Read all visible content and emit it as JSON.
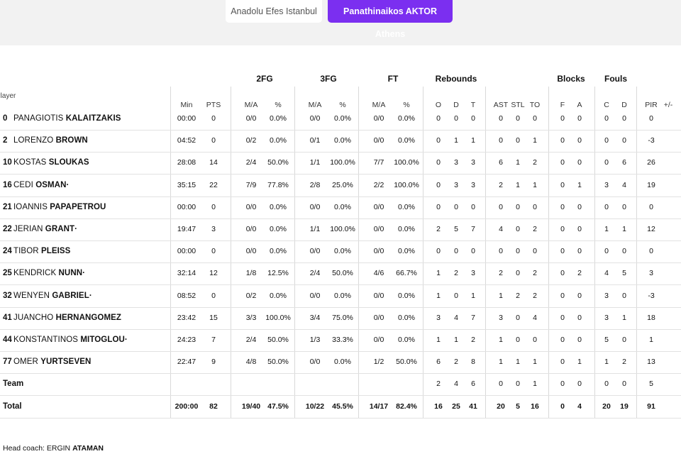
{
  "tabs": {
    "home": "Anadolu Efes Istanbul",
    "away": "Panathinaikos AKTOR Athens"
  },
  "groups": {
    "fg2": "2FG",
    "fg3": "3FG",
    "ft": "FT",
    "reb": "Rebounds",
    "blk": "Blocks",
    "fouls": "Fouls"
  },
  "headers": {
    "player": "Player",
    "min": "Min",
    "pts": "PTS",
    "fg2_ma": "M/A",
    "fg2_pct": "%",
    "fg3_ma": "M/A",
    "fg3_pct": "%",
    "ft_ma": "M/A",
    "ft_pct": "%",
    "o": "O",
    "d": "D",
    "t": "T",
    "ast": "AST",
    "stl": "STL",
    "to": "TO",
    "bf": "F",
    "ba": "A",
    "fc": "C",
    "fd": "D",
    "pir": "PIR",
    "pm": "+/-"
  },
  "players": [
    {
      "num": "0",
      "first": "PANAGIOTIS",
      "last": "KALAITZAKIS",
      "min": "00:00",
      "pts": "0",
      "fg2": "0/0",
      "fg2p": "0.0%",
      "fg3": "0/0",
      "fg3p": "0.0%",
      "ft": "0/0",
      "ftp": "0.0%",
      "o": "0",
      "d": "0",
      "t": "0",
      "ast": "0",
      "stl": "0",
      "to": "0",
      "bf": "0",
      "ba": "0",
      "fc": "0",
      "fd": "0",
      "pir": "0"
    },
    {
      "num": "2",
      "first": "LORENZO",
      "last": "BROWN",
      "min": "04:52",
      "pts": "0",
      "fg2": "0/2",
      "fg2p": "0.0%",
      "fg3": "0/1",
      "fg3p": "0.0%",
      "ft": "0/0",
      "ftp": "0.0%",
      "o": "0",
      "d": "1",
      "t": "1",
      "ast": "0",
      "stl": "0",
      "to": "1",
      "bf": "0",
      "ba": "0",
      "fc": "0",
      "fd": "0",
      "pir": "-3"
    },
    {
      "num": "10",
      "first": "KOSTAS",
      "last": "SLOUKAS",
      "min": "28:08",
      "pts": "14",
      "fg2": "2/4",
      "fg2p": "50.0%",
      "fg3": "1/1",
      "fg3p": "100.0%",
      "ft": "7/7",
      "ftp": "100.0%",
      "o": "0",
      "d": "3",
      "t": "3",
      "ast": "6",
      "stl": "1",
      "to": "2",
      "bf": "0",
      "ba": "0",
      "fc": "0",
      "fd": "6",
      "pir": "26"
    },
    {
      "num": "16",
      "first": "CEDI",
      "last": "OSMAN·",
      "min": "35:15",
      "pts": "22",
      "fg2": "7/9",
      "fg2p": "77.8%",
      "fg3": "2/8",
      "fg3p": "25.0%",
      "ft": "2/2",
      "ftp": "100.0%",
      "o": "0",
      "d": "3",
      "t": "3",
      "ast": "2",
      "stl": "1",
      "to": "1",
      "bf": "0",
      "ba": "1",
      "fc": "3",
      "fd": "4",
      "pir": "19"
    },
    {
      "num": "21",
      "first": "IOANNIS",
      "last": "PAPAPETROU",
      "min": "00:00",
      "pts": "0",
      "fg2": "0/0",
      "fg2p": "0.0%",
      "fg3": "0/0",
      "fg3p": "0.0%",
      "ft": "0/0",
      "ftp": "0.0%",
      "o": "0",
      "d": "0",
      "t": "0",
      "ast": "0",
      "stl": "0",
      "to": "0",
      "bf": "0",
      "ba": "0",
      "fc": "0",
      "fd": "0",
      "pir": "0"
    },
    {
      "num": "22",
      "first": "JERIAN",
      "last": "GRANT·",
      "min": "19:47",
      "pts": "3",
      "fg2": "0/0",
      "fg2p": "0.0%",
      "fg3": "1/1",
      "fg3p": "100.0%",
      "ft": "0/0",
      "ftp": "0.0%",
      "o": "2",
      "d": "5",
      "t": "7",
      "ast": "4",
      "stl": "0",
      "to": "2",
      "bf": "0",
      "ba": "0",
      "fc": "1",
      "fd": "1",
      "pir": "12"
    },
    {
      "num": "24",
      "first": "TIBOR",
      "last": "PLEISS",
      "min": "00:00",
      "pts": "0",
      "fg2": "0/0",
      "fg2p": "0.0%",
      "fg3": "0/0",
      "fg3p": "0.0%",
      "ft": "0/0",
      "ftp": "0.0%",
      "o": "0",
      "d": "0",
      "t": "0",
      "ast": "0",
      "stl": "0",
      "to": "0",
      "bf": "0",
      "ba": "0",
      "fc": "0",
      "fd": "0",
      "pir": "0"
    },
    {
      "num": "25",
      "first": "KENDRICK",
      "last": "NUNN·",
      "min": "32:14",
      "pts": "12",
      "fg2": "1/8",
      "fg2p": "12.5%",
      "fg3": "2/4",
      "fg3p": "50.0%",
      "ft": "4/6",
      "ftp": "66.7%",
      "o": "1",
      "d": "2",
      "t": "3",
      "ast": "2",
      "stl": "0",
      "to": "2",
      "bf": "0",
      "ba": "2",
      "fc": "4",
      "fd": "5",
      "pir": "3"
    },
    {
      "num": "32",
      "first": "WENYEN",
      "last": "GABRIEL·",
      "min": "08:52",
      "pts": "0",
      "fg2": "0/2",
      "fg2p": "0.0%",
      "fg3": "0/0",
      "fg3p": "0.0%",
      "ft": "0/0",
      "ftp": "0.0%",
      "o": "1",
      "d": "0",
      "t": "1",
      "ast": "1",
      "stl": "2",
      "to": "2",
      "bf": "0",
      "ba": "0",
      "fc": "3",
      "fd": "0",
      "pir": "-3"
    },
    {
      "num": "41",
      "first": "JUANCHO",
      "last": "HERNANGOMEZ",
      "min": "23:42",
      "pts": "15",
      "fg2": "3/3",
      "fg2p": "100.0%",
      "fg3": "3/4",
      "fg3p": "75.0%",
      "ft": "0/0",
      "ftp": "0.0%",
      "o": "3",
      "d": "4",
      "t": "7",
      "ast": "3",
      "stl": "0",
      "to": "4",
      "bf": "0",
      "ba": "0",
      "fc": "3",
      "fd": "1",
      "pir": "18"
    },
    {
      "num": "44",
      "first": "KONSTANTINOS",
      "last": "MITOGLOU·",
      "min": "24:23",
      "pts": "7",
      "fg2": "2/4",
      "fg2p": "50.0%",
      "fg3": "1/3",
      "fg3p": "33.3%",
      "ft": "0/0",
      "ftp": "0.0%",
      "o": "1",
      "d": "1",
      "t": "2",
      "ast": "1",
      "stl": "0",
      "to": "0",
      "bf": "0",
      "ba": "0",
      "fc": "5",
      "fd": "0",
      "pir": "1"
    },
    {
      "num": "77",
      "first": "OMER",
      "last": "YURTSEVEN",
      "min": "22:47",
      "pts": "9",
      "fg2": "4/8",
      "fg2p": "50.0%",
      "fg3": "0/0",
      "fg3p": "0.0%",
      "ft": "1/2",
      "ftp": "50.0%",
      "o": "6",
      "d": "2",
      "t": "8",
      "ast": "1",
      "stl": "1",
      "to": "1",
      "bf": "0",
      "ba": "1",
      "fc": "1",
      "fd": "2",
      "pir": "13"
    }
  ],
  "team": {
    "label": "Team",
    "o": "2",
    "d": "4",
    "t": "6",
    "ast": "0",
    "stl": "0",
    "to": "1",
    "bf": "0",
    "ba": "0",
    "fc": "0",
    "fd": "0",
    "pir": "5"
  },
  "total": {
    "label": "Total",
    "min": "200:00",
    "pts": "82",
    "fg2": "19/40",
    "fg2p": "47.5%",
    "fg3": "10/22",
    "fg3p": "45.5%",
    "ft": "14/17",
    "ftp": "82.4%",
    "o": "16",
    "d": "25",
    "t": "41",
    "ast": "20",
    "stl": "5",
    "to": "16",
    "bf": "0",
    "ba": "4",
    "fc": "20",
    "fd": "19",
    "pir": "91"
  },
  "coach": {
    "label": "Head coach:",
    "first": "ERGIN",
    "last": "ATAMAN"
  }
}
